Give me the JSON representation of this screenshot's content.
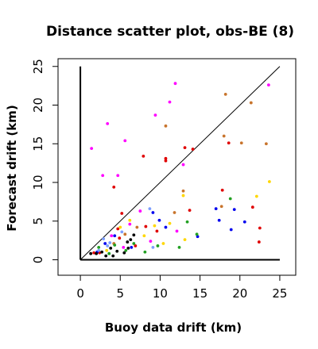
{
  "chart_data": {
    "type": "scatter",
    "title": "Distance scatter plot, obs-BE (8)",
    "xlabel": "Buoy data drift (km)",
    "ylabel": "Forecast drift (km)",
    "xlim": [
      -2.8,
      27
    ],
    "ylim": [
      -2,
      26
    ],
    "xticks": [
      "0",
      "5",
      "10",
      "15",
      "20",
      "25"
    ],
    "yticks": [
      "0",
      "5",
      "10",
      "15",
      "20",
      "25"
    ],
    "grid": false,
    "legend": "none",
    "reference_lines": [
      "y=x",
      "x=0",
      "y=0"
    ],
    "series": [
      {
        "color": "#ff00ff",
        "points": [
          [
            1.4,
            14.4
          ],
          [
            2.8,
            10.9
          ],
          [
            3.4,
            17.6
          ],
          [
            4.7,
            10.9
          ],
          [
            5.6,
            15.4
          ],
          [
            9.4,
            18.7
          ],
          [
            11.2,
            20.4
          ],
          [
            11.9,
            22.8
          ],
          [
            12.9,
            12.3
          ],
          [
            23.6,
            22.6
          ],
          [
            7.5,
            6.3
          ],
          [
            6.2,
            4.6
          ],
          [
            3.9,
            3.1
          ],
          [
            8.8,
            2.4
          ],
          [
            12.1,
            3.7
          ],
          [
            5.4,
            1.6
          ]
        ]
      },
      {
        "color": "#e00000",
        "points": [
          [
            4.2,
            9.4
          ],
          [
            7.9,
            13.4
          ],
          [
            10.7,
            13.1
          ],
          [
            10.7,
            12.8
          ],
          [
            13.1,
            14.5
          ],
          [
            14.1,
            14.3
          ],
          [
            17.8,
            9.0
          ],
          [
            18.6,
            15.1
          ],
          [
            21.6,
            6.8
          ],
          [
            22.4,
            2.3
          ],
          [
            22.5,
            4.1
          ],
          [
            5.2,
            6.0
          ],
          [
            4.7,
            4.0
          ],
          [
            9.6,
            3.7
          ],
          [
            13.7,
            6.4
          ],
          [
            1.7,
            0.9
          ],
          [
            2.4,
            0.9
          ],
          [
            6.9,
            1.8
          ],
          [
            4.9,
            2.8
          ],
          [
            8.2,
            4.3
          ]
        ]
      },
      {
        "color": "#c8742c",
        "points": [
          [
            10.7,
            17.3
          ],
          [
            12.9,
            8.9
          ],
          [
            18.0,
            16.0
          ],
          [
            18.2,
            21.4
          ],
          [
            21.4,
            20.3
          ],
          [
            23.3,
            15.0
          ],
          [
            20.2,
            15.1
          ],
          [
            17.7,
            6.9
          ],
          [
            11.8,
            6.1
          ],
          [
            7.1,
            4.2
          ],
          [
            5.6,
            3.3
          ],
          [
            4.2,
            2.1
          ]
        ]
      },
      {
        "color": "#ffd700",
        "points": [
          [
            23.7,
            10.1
          ],
          [
            22.1,
            8.2
          ],
          [
            12.9,
            8.3
          ],
          [
            9.3,
            4.4
          ],
          [
            11.2,
            4.7
          ],
          [
            6.2,
            5.1
          ],
          [
            5.0,
            4.2
          ],
          [
            13.1,
            2.6
          ],
          [
            8.0,
            3.1
          ],
          [
            10.4,
            2.1
          ],
          [
            3.3,
            1.2
          ]
        ]
      },
      {
        "color": "#0000ee",
        "points": [
          [
            17.0,
            6.6
          ],
          [
            17.4,
            5.1
          ],
          [
            19.3,
            6.5
          ],
          [
            18.9,
            3.9
          ],
          [
            20.6,
            4.9
          ],
          [
            14.7,
            3.0
          ],
          [
            10.7,
            4.2
          ],
          [
            9.1,
            6.1
          ],
          [
            9.9,
            5.1
          ],
          [
            3.1,
            2.1
          ],
          [
            4.3,
            3.1
          ],
          [
            6.4,
            1.6
          ],
          [
            2.1,
            1.0
          ]
        ]
      },
      {
        "color": "#7d9eff",
        "points": [
          [
            8.7,
            6.6
          ],
          [
            2.9,
            2.7
          ],
          [
            3.7,
            2.2
          ],
          [
            2.3,
            1.2
          ],
          [
            5.2,
            3.6
          ],
          [
            9.1,
            1.6
          ],
          [
            3.4,
            1.8
          ]
        ]
      },
      {
        "color": "#22a022",
        "points": [
          [
            18.8,
            7.9
          ],
          [
            13.4,
            4.9
          ],
          [
            14.6,
            3.3
          ],
          [
            12.4,
            1.6
          ],
          [
            9.7,
            1.8
          ],
          [
            8.1,
            1.0
          ],
          [
            5.7,
            1.2
          ],
          [
            6.7,
            2.1
          ],
          [
            2.3,
            1.6
          ],
          [
            3.6,
            0.8
          ],
          [
            4.3,
            1.9
          ]
        ]
      },
      {
        "color": "#000000",
        "points": [
          [
            1.3,
            0.8
          ],
          [
            2.0,
            0.8
          ],
          [
            2.7,
            1.0
          ],
          [
            3.2,
            0.5
          ],
          [
            4.1,
            0.5
          ],
          [
            4.6,
            1.1
          ],
          [
            5.5,
            0.9
          ],
          [
            6.0,
            1.5
          ],
          [
            6.3,
            2.6
          ],
          [
            6.7,
            3.2
          ],
          [
            5.9,
            2.3
          ],
          [
            3.8,
            1.5
          ]
        ]
      }
    ]
  }
}
